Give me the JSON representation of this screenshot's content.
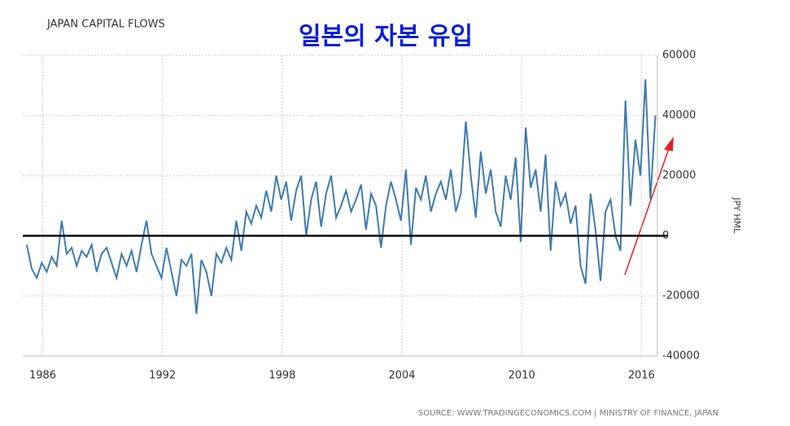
{
  "chart_data": {
    "type": "line",
    "title": "JAPAN CAPITAL FLOWS",
    "subtitle": "일본의 자본 유입",
    "y_axis_label": "JPY HML",
    "source": "SOURCE: WWW.TRADINGECONOMICS.COM | MINISTRY OF FINANCE, JAPAN",
    "x": [
      1985.2,
      1985.45,
      1985.7,
      1985.95,
      1986.2,
      1986.45,
      1986.7,
      1986.95,
      1987.2,
      1987.45,
      1987.7,
      1987.95,
      1988.2,
      1988.45,
      1988.7,
      1988.95,
      1989.2,
      1989.45,
      1989.7,
      1989.95,
      1990.2,
      1990.45,
      1990.7,
      1990.95,
      1991.2,
      1991.45,
      1991.7,
      1991.95,
      1992.2,
      1992.45,
      1992.7,
      1992.95,
      1993.2,
      1993.45,
      1993.7,
      1993.95,
      1994.2,
      1994.45,
      1994.7,
      1994.95,
      1995.2,
      1995.45,
      1995.7,
      1995.95,
      1996.2,
      1996.45,
      1996.7,
      1996.95,
      1997.2,
      1997.45,
      1997.7,
      1997.95,
      1998.2,
      1998.45,
      1998.7,
      1998.95,
      1999.2,
      1999.45,
      1999.7,
      1999.95,
      2000.2,
      2000.45,
      2000.7,
      2000.95,
      2001.2,
      2001.45,
      2001.7,
      2001.95,
      2002.2,
      2002.45,
      2002.7,
      2002.95,
      2003.2,
      2003.45,
      2003.7,
      2003.95,
      2004.2,
      2004.45,
      2004.7,
      2004.95,
      2005.2,
      2005.45,
      2005.7,
      2005.95,
      2006.2,
      2006.45,
      2006.7,
      2006.95,
      2007.2,
      2007.45,
      2007.7,
      2007.95,
      2008.2,
      2008.45,
      2008.7,
      2008.95,
      2009.2,
      2009.45,
      2009.7,
      2009.95,
      2010.2,
      2010.45,
      2010.7,
      2010.95,
      2011.2,
      2011.45,
      2011.7,
      2011.95,
      2012.2,
      2012.45,
      2012.7,
      2012.95,
      2013.2,
      2013.45,
      2013.7,
      2013.95,
      2014.2,
      2014.45,
      2014.7,
      2014.95,
      2015.2,
      2015.45,
      2015.7,
      2015.95,
      2016.2,
      2016.45,
      2016.7
    ],
    "series": [
      {
        "name": "Japan Capital Flows",
        "color": "#3f7bad",
        "values": [
          -3000,
          -11000,
          -14000,
          -9000,
          -12000,
          -7000,
          -10000,
          5000,
          -6000,
          -4000,
          -10000,
          -5000,
          -7000,
          -3000,
          -12000,
          -6000,
          -4000,
          -9000,
          -14000,
          -6000,
          -10000,
          -5000,
          -12000,
          -3000,
          5000,
          -6000,
          -10000,
          -14000,
          -4000,
          -12000,
          -20000,
          -8000,
          -10000,
          -6000,
          -26000,
          -8000,
          -12000,
          -20000,
          -6000,
          -9000,
          -4000,
          -8000,
          5000,
          -5000,
          8000,
          4000,
          10000,
          6000,
          15000,
          8000,
          20000,
          12000,
          18000,
          5000,
          15000,
          20000,
          0,
          12000,
          18000,
          3000,
          14000,
          20000,
          6000,
          10000,
          15000,
          8000,
          12000,
          17000,
          2000,
          14000,
          10000,
          -4000,
          10000,
          18000,
          12000,
          5000,
          22000,
          -3000,
          16000,
          12000,
          20000,
          8000,
          14000,
          18000,
          12000,
          22000,
          8000,
          14000,
          38000,
          20000,
          6000,
          28000,
          14000,
          22000,
          8000,
          3000,
          20000,
          12000,
          26000,
          -2000,
          36000,
          16000,
          22000,
          8000,
          27000,
          -5000,
          18000,
          10000,
          14000,
          4000,
          10000,
          -10000,
          -16000,
          14000,
          2000,
          -15000,
          8000,
          12000,
          0,
          -5000,
          45000,
          10000,
          32000,
          20000,
          52000,
          12000,
          40000
        ]
      }
    ],
    "reference_line": 0,
    "xlim": [
      1985.0,
      2016.8
    ],
    "xticks": [
      1986,
      1992,
      1998,
      2004,
      2010,
      2016
    ],
    "ylim": [
      -40000,
      60000
    ],
    "yticks": [
      -40000,
      -20000,
      0,
      20000,
      40000,
      60000
    ],
    "grid": true
  }
}
